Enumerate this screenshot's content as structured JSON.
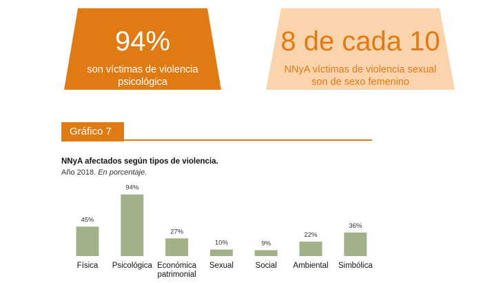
{
  "cards": [
    {
      "big": "94%",
      "sub_lines": [
        "son víctimas de violencia",
        "psicológica"
      ],
      "fill": "#e07b14"
    },
    {
      "big": "8 de cada 10",
      "sub_lines": [
        "NNyA víctimas de violencia sexual",
        "son de sexo femenino"
      ],
      "fill": "#fbd3ac"
    }
  ],
  "figure_label": "Gráfico 7",
  "accent_color": "#e07b14",
  "chart_data": {
    "type": "bar",
    "title": "NNyA afectados según tipos de violencia.",
    "subtitle_plain": "Año 2018. ",
    "subtitle_italic": "En porcentaje.",
    "categories": [
      [
        "Física"
      ],
      [
        "Psicológica"
      ],
      [
        "Económica",
        "patrimonial"
      ],
      [
        "Sexual"
      ],
      [
        "Social"
      ],
      [
        "Ambiental"
      ],
      [
        "Simbólica"
      ]
    ],
    "values": [
      45,
      94,
      27,
      10,
      9,
      22,
      36
    ],
    "value_labels": [
      "45%",
      "94%",
      "27%",
      "10%",
      "9%",
      "22%",
      "36%"
    ],
    "ylim": [
      0,
      100
    ],
    "grid": false,
    "bar_color": "#a3b18a"
  }
}
